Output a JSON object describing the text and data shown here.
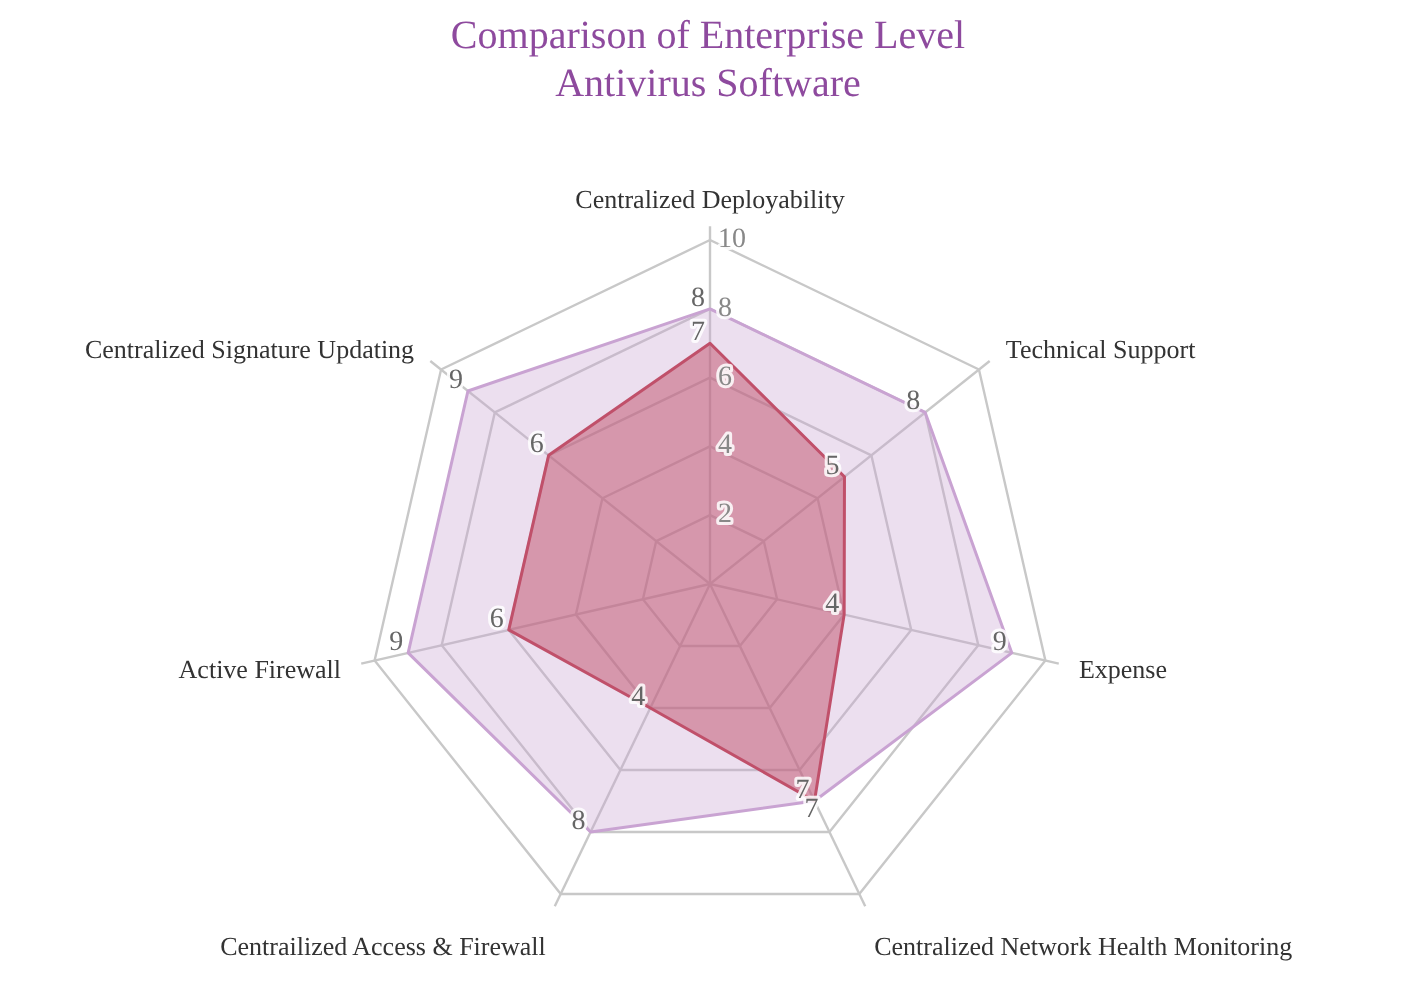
{
  "chart_data": {
    "type": "radar",
    "title": "Comparison of Enterprise Level\nAntivirus Software",
    "categories": [
      "Centralized Deployability",
      "Technical Support",
      "Expense",
      "Centralized Network Health Monitoring",
      "Centrailized Access & Firewall",
      "Active Firewall",
      "Centralized Signature Updating"
    ],
    "series": [
      {
        "color": "#c9a3d2",
        "values": [
          8,
          8,
          9,
          7,
          8,
          9,
          9
        ]
      },
      {
        "color": "#c0506a",
        "values": [
          7,
          5,
          4,
          7,
          4,
          6,
          6
        ]
      }
    ],
    "ylim": [
      0,
      10
    ],
    "yticks": [
      2,
      4,
      6,
      8,
      10
    ],
    "grid": true,
    "data_labels": true
  }
}
